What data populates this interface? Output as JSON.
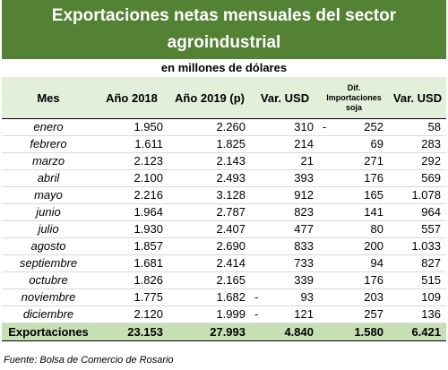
{
  "title": "Exportaciones netas mensuales del sector agroindustrial",
  "subtitle": "en millones de dólares",
  "headers": [
    "Mes",
    "Año 2018",
    "Año 2019 (p)",
    "Var. USD",
    "Dif. Importaciones soja",
    "Var. USD"
  ],
  "rows": [
    {
      "mes": "enero",
      "y2018": "1.950",
      "y2019": "2.260",
      "var_sign": "",
      "var": "310",
      "dif_sign": "-",
      "dif": "252",
      "var2": "58"
    },
    {
      "mes": "febrero",
      "y2018": "1.611",
      "y2019": "1.825",
      "var_sign": "",
      "var": "214",
      "dif_sign": "",
      "dif": "69",
      "var2": "283"
    },
    {
      "mes": "marzo",
      "y2018": "2.123",
      "y2019": "2.143",
      "var_sign": "",
      "var": "21",
      "dif_sign": "",
      "dif": "271",
      "var2": "292"
    },
    {
      "mes": "abril",
      "y2018": "2.100",
      "y2019": "2.493",
      "var_sign": "",
      "var": "393",
      "dif_sign": "",
      "dif": "176",
      "var2": "569"
    },
    {
      "mes": "mayo",
      "y2018": "2.216",
      "y2019": "3.128",
      "var_sign": "",
      "var": "912",
      "dif_sign": "",
      "dif": "165",
      "var2": "1.078"
    },
    {
      "mes": "junio",
      "y2018": "1.964",
      "y2019": "2.787",
      "var_sign": "",
      "var": "823",
      "dif_sign": "",
      "dif": "141",
      "var2": "964"
    },
    {
      "mes": "julio",
      "y2018": "1.930",
      "y2019": "2.407",
      "var_sign": "",
      "var": "477",
      "dif_sign": "",
      "dif": "80",
      "var2": "557"
    },
    {
      "mes": "agosto",
      "y2018": "1.857",
      "y2019": "2.690",
      "var_sign": "",
      "var": "833",
      "dif_sign": "",
      "dif": "200",
      "var2": "1.033"
    },
    {
      "mes": "septiembre",
      "y2018": "1.681",
      "y2019": "2.414",
      "var_sign": "",
      "var": "733",
      "dif_sign": "",
      "dif": "94",
      "var2": "827"
    },
    {
      "mes": "octubre",
      "y2018": "1.826",
      "y2019": "2.165",
      "var_sign": "",
      "var": "339",
      "dif_sign": "",
      "dif": "176",
      "var2": "515"
    },
    {
      "mes": "noviembre",
      "y2018": "1.775",
      "y2019": "1.682",
      "var_sign": "-",
      "var": "93",
      "dif_sign": "",
      "dif": "203",
      "var2": "109"
    },
    {
      "mes": "diciembre",
      "y2018": "2.120",
      "y2019": "1.999",
      "var_sign": "-",
      "var": "121",
      "dif_sign": "",
      "dif": "257",
      "var2": "136"
    }
  ],
  "total": {
    "mes": "Exportaciones",
    "y2018": "23.153",
    "y2019": "27.993",
    "var_sign": "",
    "var": "4.840",
    "dif_sign": "",
    "dif": "1.580",
    "var2": "6.421"
  },
  "source": "Fuente: Bolsa de Comercio de Rosario",
  "colors": {
    "title_bg": "#548235",
    "header_bg": "#e2efda",
    "total_bg": "#c6e0b4"
  }
}
